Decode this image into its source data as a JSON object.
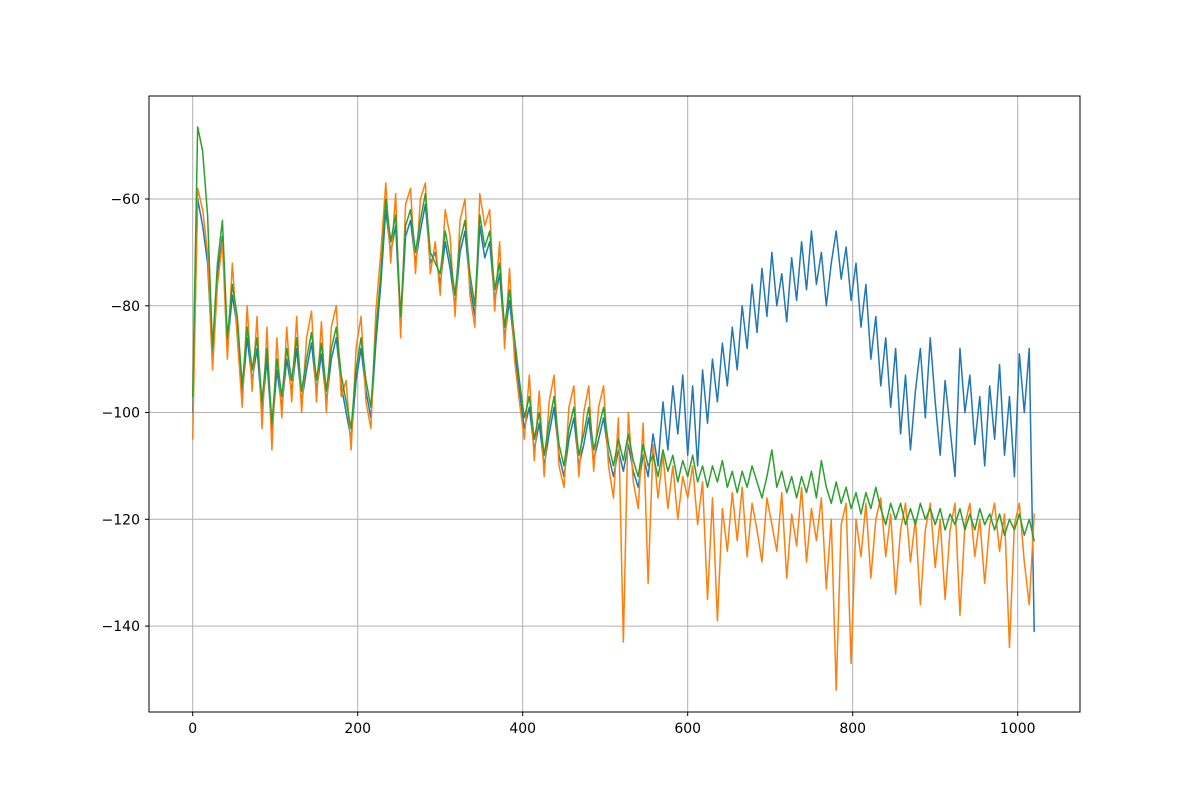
{
  "figure": {
    "background": "#ffffff",
    "title": ""
  },
  "axes": {
    "spine_color": "#000000",
    "grid_color": "#b0b0b0",
    "tick_color": "#000000",
    "label_color": "#000000",
    "grid_on": true
  },
  "chart_data": {
    "type": "line",
    "title": "",
    "xlabel": "",
    "ylabel": "",
    "legend": null,
    "xlim": [
      -53,
      1075.5
    ],
    "ylim": [
      -156.1,
      -40.7
    ],
    "xticks": [
      0,
      200,
      400,
      600,
      800,
      1000
    ],
    "yticks": [
      -140,
      -120,
      -100,
      -80,
      -60
    ],
    "x_start": 0,
    "x_step": 6,
    "line_width": 1.5,
    "series": [
      {
        "name": "series-0",
        "color": "#1f77b4",
        "values": [
          -100,
          -60,
          -65,
          -72,
          -90,
          -74,
          -67,
          -88,
          -78,
          -84,
          -97,
          -86,
          -94,
          -88,
          -100,
          -90,
          -104,
          -92,
          -99,
          -90,
          -96,
          -88,
          -98,
          -92,
          -87,
          -96,
          -89,
          -98,
          -90,
          -86,
          -95,
          -100,
          -105,
          -94,
          -88,
          -96,
          -101,
          -87,
          -76,
          -62,
          -70,
          -65,
          -84,
          -67,
          -64,
          -72,
          -66,
          -61,
          -72,
          -70,
          -76,
          -68,
          -73,
          -80,
          -70,
          -66,
          -76,
          -82,
          -65,
          -71,
          -68,
          -79,
          -74,
          -86,
          -79,
          -88,
          -96,
          -103,
          -99,
          -107,
          -102,
          -110,
          -104,
          -99,
          -108,
          -112,
          -105,
          -101,
          -110,
          -106,
          -101,
          -109,
          -105,
          -101,
          -108,
          -112,
          -107,
          -111,
          -106,
          -111,
          -114,
          -108,
          -112,
          -104,
          -110,
          -98,
          -107,
          -95,
          -104,
          -93,
          -108,
          -95,
          -110,
          -92,
          -102,
          -90,
          -98,
          -87,
          -95,
          -84,
          -92,
          -80,
          -88,
          -76,
          -85,
          -73,
          -82,
          -70,
          -80,
          -74,
          -83,
          -71,
          -79,
          -68,
          -77,
          -66,
          -76,
          -70,
          -80,
          -72,
          -66,
          -75,
          -69,
          -79,
          -72,
          -84,
          -76,
          -90,
          -82,
          -95,
          -86,
          -99,
          -88,
          -104,
          -93,
          -107,
          -96,
          -88,
          -101,
          -86,
          -98,
          -108,
          -94,
          -103,
          -112,
          -88,
          -100,
          -93,
          -106,
          -97,
          -110,
          -95,
          -105,
          -91,
          -108,
          -97,
          -112,
          -89,
          -100,
          -88,
          -141
        ]
      },
      {
        "name": "series-1",
        "color": "#ff7f0e",
        "values": [
          -105,
          -58,
          -62,
          -70,
          -92,
          -76,
          -68,
          -90,
          -72,
          -86,
          -99,
          -80,
          -96,
          -82,
          -103,
          -84,
          -107,
          -86,
          -101,
          -84,
          -98,
          -82,
          -100,
          -86,
          -81,
          -98,
          -83,
          -100,
          -84,
          -80,
          -97,
          -94,
          -107,
          -88,
          -82,
          -98,
          -103,
          -81,
          -70,
          -57,
          -72,
          -59,
          -86,
          -61,
          -58,
          -74,
          -60,
          -57,
          -74,
          -68,
          -78,
          -62,
          -67,
          -82,
          -64,
          -60,
          -78,
          -84,
          -59,
          -65,
          -62,
          -81,
          -68,
          -88,
          -73,
          -90,
          -98,
          -105,
          -93,
          -109,
          -96,
          -112,
          -98,
          -93,
          -110,
          -114,
          -99,
          -95,
          -112,
          -100,
          -95,
          -111,
          -99,
          -95,
          -110,
          -116,
          -101,
          -143,
          -100,
          -113,
          -118,
          -102,
          -132,
          -106,
          -116,
          -108,
          -118,
          -110,
          -120,
          -112,
          -116,
          -110,
          -121,
          -113,
          -135,
          -116,
          -139,
          -118,
          -126,
          -115,
          -124,
          -114,
          -127,
          -117,
          -122,
          -128,
          -116,
          -121,
          -126,
          -115,
          -131,
          -119,
          -125,
          -114,
          -128,
          -118,
          -124,
          -116,
          -133,
          -120,
          -152,
          -121,
          -117,
          -147,
          -120,
          -127,
          -117,
          -131,
          -120,
          -116,
          -127,
          -119,
          -134,
          -122,
          -117,
          -128,
          -120,
          -136,
          -122,
          -117,
          -129,
          -120,
          -135,
          -122,
          -117,
          -138,
          -121,
          -117,
          -127,
          -120,
          -132,
          -121,
          -117,
          -126,
          -119,
          -144,
          -121,
          -117,
          -128,
          -136,
          -119
        ]
      },
      {
        "name": "series-2",
        "color": "#2ca02c",
        "values": [
          -97,
          -46.5,
          -51,
          -63,
          -88,
          -72,
          -64,
          -86,
          -76,
          -82,
          -95,
          -84,
          -92,
          -86,
          -98,
          -88,
          -102,
          -90,
          -97,
          -88,
          -94,
          -86,
          -96,
          -90,
          -85,
          -94,
          -87,
          -96,
          -88,
          -84,
          -93,
          -98,
          -103,
          -92,
          -86,
          -94,
          -99,
          -85,
          -74,
          -60,
          -68,
          -63,
          -82,
          -65,
          -62,
          -70,
          -64,
          -59,
          -70,
          -72,
          -74,
          -66,
          -71,
          -78,
          -68,
          -64,
          -74,
          -80,
          -63,
          -69,
          -66,
          -77,
          -72,
          -84,
          -77,
          -86,
          -94,
          -101,
          -97,
          -105,
          -100,
          -108,
          -102,
          -97,
          -106,
          -110,
          -103,
          -99,
          -108,
          -104,
          -99,
          -107,
          -103,
          -99,
          -106,
          -110,
          -105,
          -109,
          -104,
          -109,
          -112,
          -106,
          -110,
          -108,
          -112,
          -107,
          -111,
          -108,
          -113,
          -109,
          -112,
          -108,
          -113,
          -110,
          -114,
          -110,
          -113,
          -109,
          -114,
          -111,
          -115,
          -111,
          -114,
          -110,
          -113,
          -116,
          -112,
          -107,
          -114,
          -111,
          -115,
          -112,
          -116,
          -112,
          -115,
          -111,
          -116,
          -109,
          -114,
          -117,
          -113,
          -117,
          -114,
          -118,
          -115,
          -119,
          -115,
          -118,
          -114,
          -118,
          -121,
          -117,
          -120,
          -117,
          -121,
          -118,
          -121,
          -117,
          -120,
          -118,
          -121,
          -118,
          -122,
          -119,
          -121,
          -118,
          -122,
          -119,
          -122,
          -118,
          -121,
          -119,
          -122,
          -119,
          -123,
          -120,
          -122,
          -119,
          -123,
          -120,
          -124
        ]
      }
    ]
  }
}
